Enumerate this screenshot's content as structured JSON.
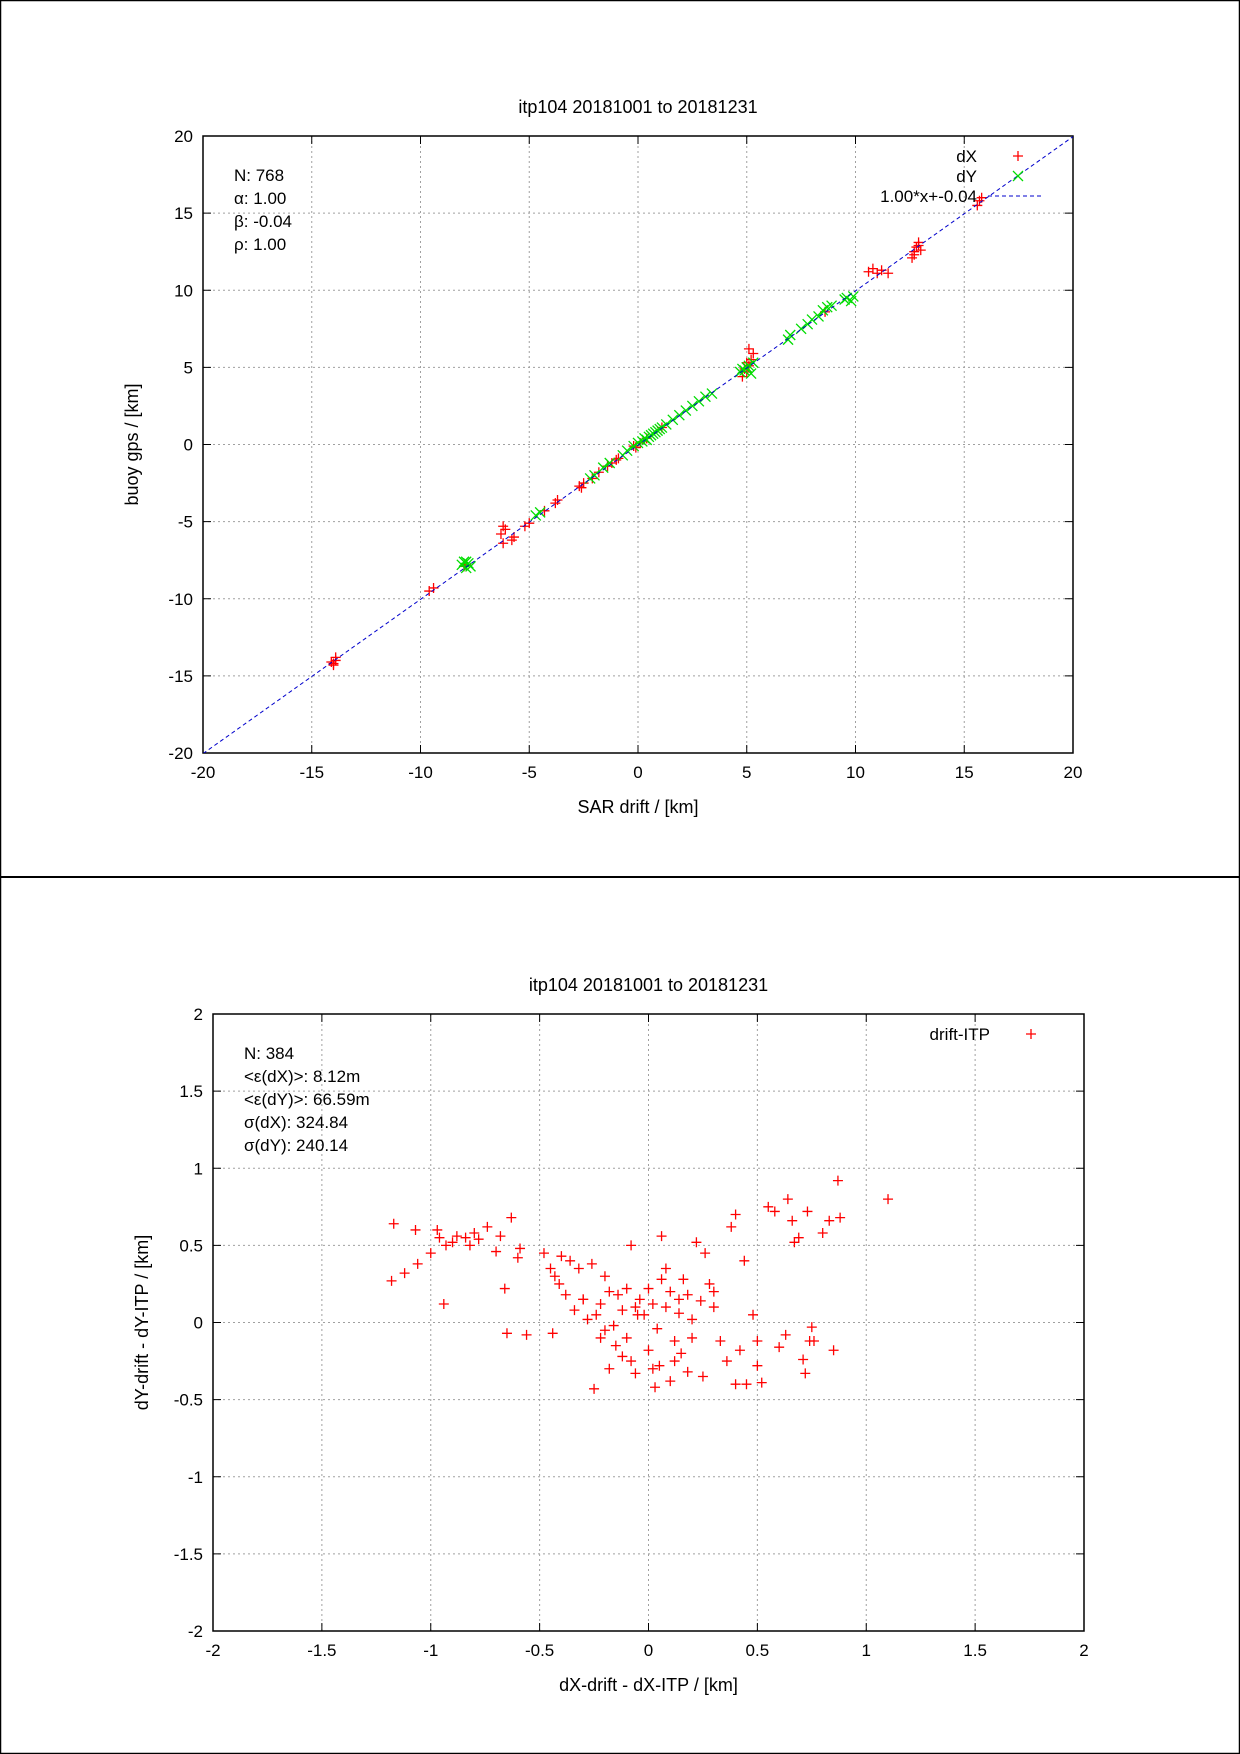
{
  "chart_data": [
    {
      "type": "scatter",
      "title": "itp104 20181001 to 20181231",
      "xlabel": "SAR drift / [km]",
      "ylabel": "buoy gps / [km]",
      "xlim": [
        -20,
        20
      ],
      "ylim": [
        -20,
        20
      ],
      "xticks": [
        -20,
        -15,
        -10,
        -5,
        0,
        5,
        10,
        15,
        20
      ],
      "yticks": [
        -20,
        -15,
        -10,
        -5,
        0,
        5,
        10,
        15,
        20
      ],
      "grid": true,
      "legend_position": "top-right",
      "stats": [
        "N: 768",
        "α: 1.00",
        "β: -0.04",
        "ρ: 1.00"
      ],
      "series": [
        {
          "name": "dX",
          "marker": "+",
          "color": "#ff0000",
          "x": [
            -14,
            -13.9,
            -14.1,
            -13.9,
            -14,
            -9.6,
            -9.4,
            -8,
            -7.9,
            -6.2,
            -6.1,
            -6.2,
            -5.8,
            -5.7,
            -6.3,
            -5.2,
            -5,
            -4.3,
            -3.8,
            -3.7,
            -2.7,
            -2.5,
            -2.6,
            -2.1,
            -1.8,
            -1.4,
            -1.2,
            -1,
            -0.9,
            -0.2,
            -0.1,
            0.1,
            0.4,
            1.1,
            4.8,
            5,
            5.1,
            5.2,
            5.3,
            5.1,
            5,
            4.9,
            8.6,
            10.6,
            10.8,
            11,
            11.2,
            11.5,
            12.6,
            12.7,
            12.8,
            12.9,
            13,
            12.7,
            12.9,
            15.7,
            15.8,
            15.6
          ],
          "y": [
            -14.3,
            -14,
            -14.1,
            -13.8,
            -14.2,
            -9.5,
            -9.3,
            -7.9,
            -7.8,
            -5.3,
            -5.5,
            -6.4,
            -6.2,
            -6,
            -5.8,
            -5.3,
            -5.1,
            -4.3,
            -3.8,
            -3.6,
            -2.7,
            -2.5,
            -2.8,
            -2.2,
            -1.8,
            -1.4,
            -1.2,
            -1,
            -0.9,
            -0.1,
            -0.2,
            0.1,
            0.4,
            1.1,
            4.4,
            4.7,
            5.1,
            5.5,
            5.9,
            6.2,
            5.3,
            4.9,
            8.6,
            11.2,
            11.4,
            11.1,
            11.3,
            11.1,
            12.1,
            12.5,
            12.8,
            13.1,
            12.6,
            12.3,
            12.9,
            15.8,
            16,
            15.5
          ]
        },
        {
          "name": "dY",
          "marker": "x",
          "color": "#00dd00",
          "x": [
            -8.1,
            -8,
            -7.9,
            -7.8,
            -7.7,
            -7.9,
            -4.7,
            -4.5,
            -2.2,
            -2,
            -1.6,
            -1.3,
            -0.7,
            -0.5,
            -0.2,
            0,
            0.2,
            0.3,
            0.4,
            0.5,
            0.6,
            0.7,
            0.8,
            0.9,
            1,
            1.1,
            1.3,
            1.6,
            1.9,
            2.2,
            2.5,
            2.8,
            3.1,
            3.4,
            4.7,
            4.8,
            4.9,
            5,
            5.1,
            5.3,
            5.2,
            6.9,
            7,
            7.5,
            7.8,
            8,
            8.3,
            8.5,
            8.7,
            8.9,
            9.5,
            9.6,
            9.8,
            9.9
          ],
          "y": [
            -7.8,
            -7.6,
            -8,
            -7.7,
            -7.9,
            -7.6,
            -4.6,
            -4.4,
            -2.2,
            -2,
            -1.5,
            -1.2,
            -0.7,
            -0.4,
            -0.1,
            0.1,
            0.2,
            0.4,
            0.3,
            0.5,
            0.6,
            0.7,
            0.8,
            0.9,
            1,
            1.1,
            1.3,
            1.6,
            1.9,
            2.2,
            2.5,
            2.8,
            3.1,
            3.3,
            4.7,
            4.9,
            4.8,
            5,
            5.1,
            5.3,
            4.6,
            6.8,
            7.1,
            7.5,
            7.8,
            8.1,
            8.3,
            8.7,
            8.9,
            9,
            9.4,
            9.5,
            9.3,
            9.6
          ]
        },
        {
          "name": "1.00*x+-0.04",
          "type": "line",
          "color": "#0000cc",
          "slope": 1.0,
          "intercept": -0.04
        }
      ]
    },
    {
      "type": "scatter",
      "title": "itp104 20181001 to 20181231",
      "xlabel": "dX-drift - dX-ITP / [km]",
      "ylabel": "dY-drift - dY-ITP / [km]",
      "xlim": [
        -2,
        2
      ],
      "ylim": [
        -2,
        2
      ],
      "xticks": [
        -2,
        -1.5,
        -1,
        -0.5,
        0,
        0.5,
        1,
        1.5,
        2
      ],
      "yticks": [
        -2,
        -1.5,
        -1,
        -0.5,
        0,
        0.5,
        1,
        1.5,
        2
      ],
      "grid": true,
      "legend_position": "top-right",
      "stats": [
        "N: 384",
        "<ε(dX)>:  8.12m",
        "<ε(dY)>: 66.59m",
        "σ(dX):  324.84",
        "σ(dY):  240.14"
      ],
      "series": [
        {
          "name": "drift-ITP",
          "marker": "+",
          "color": "#ff0000",
          "x": [
            -1.18,
            -1.17,
            -1.12,
            -1.07,
            -1.06,
            -1,
            -0.97,
            -0.96,
            -0.94,
            -0.93,
            -0.9,
            -0.88,
            -0.84,
            -0.82,
            -0.8,
            -0.78,
            -0.74,
            -0.7,
            -0.68,
            -0.66,
            -0.65,
            -0.63,
            -0.6,
            -0.59,
            -0.56,
            -0.48,
            -0.45,
            -0.44,
            -0.43,
            -0.41,
            -0.4,
            -0.38,
            -0.36,
            -0.34,
            -0.32,
            -0.3,
            -0.28,
            -0.26,
            -0.24,
            -0.22,
            -0.2,
            -0.18,
            -0.16,
            -0.14,
            -0.12,
            -0.1,
            -0.08,
            -0.06,
            -0.04,
            -0.02,
            0,
            0.02,
            0.04,
            0.06,
            0.08,
            0.1,
            0.12,
            0.14,
            0.16,
            0.18,
            0.2,
            0.22,
            0.24,
            0.26,
            0.28,
            0.3,
            0.33,
            0.36,
            0.38,
            0.4,
            0.42,
            0.44,
            0.45,
            0.48,
            0.5,
            0.52,
            0.55,
            0.58,
            0.6,
            0.63,
            0.64,
            0.67,
            0.69,
            0.71,
            0.73,
            0.75,
            0.76,
            0.8,
            0.83,
            0.85,
            0.87,
            0.88,
            1.1,
            -0.25,
            -0.18,
            -0.12,
            -0.06,
            0,
            0.05,
            0.1,
            0.15,
            -0.2,
            -0.1,
            0.02,
            0.08,
            0.14,
            0.2,
            0.25,
            -0.3,
            -0.15,
            -0.05,
            0.06,
            0.12,
            0.3,
            -0.22,
            -0.08,
            0.03,
            0.18,
            0.4,
            0.66,
            0.72,
            0.74,
            0.5
          ],
          "y": [
            0.27,
            0.64,
            0.32,
            0.6,
            0.38,
            0.45,
            0.6,
            0.55,
            0.12,
            0.5,
            0.52,
            0.56,
            0.55,
            0.5,
            0.58,
            0.54,
            0.62,
            0.46,
            0.56,
            0.22,
            -0.07,
            0.68,
            0.42,
            0.48,
            -0.08,
            0.45,
            0.35,
            -0.07,
            0.3,
            0.25,
            0.43,
            0.18,
            0.4,
            0.08,
            0.35,
            0.15,
            0.02,
            0.38,
            0.05,
            0.12,
            -0.05,
            0.2,
            -0.02,
            0.18,
            0.08,
            -0.1,
            0.5,
            0.1,
            0.15,
            0.05,
            0.22,
            0.12,
            -0.04,
            0.56,
            0.1,
            0.2,
            -0.12,
            0.06,
            0.28,
            0.18,
            0.02,
            0.52,
            0.14,
            0.45,
            0.25,
            0.1,
            -0.12,
            -0.25,
            0.62,
            0.7,
            -0.18,
            0.4,
            -0.4,
            0.05,
            -0.12,
            -0.39,
            0.75,
            0.72,
            -0.16,
            -0.08,
            0.8,
            0.52,
            0.55,
            -0.24,
            0.72,
            -0.03,
            -0.12,
            0.58,
            0.66,
            -0.18,
            0.92,
            0.68,
            0.8,
            -0.43,
            -0.3,
            -0.22,
            -0.33,
            -0.18,
            -0.28,
            -0.38,
            -0.2,
            0.3,
            0.22,
            -0.3,
            0.35,
            0.15,
            -0.1,
            -0.35,
            0.15,
            -0.15,
            0.05,
            0.28,
            -0.25,
            0.2,
            -0.1,
            -0.25,
            -0.42,
            -0.32,
            -0.4,
            0.66,
            -0.33,
            -0.12,
            -0.28
          ]
        }
      ]
    }
  ]
}
